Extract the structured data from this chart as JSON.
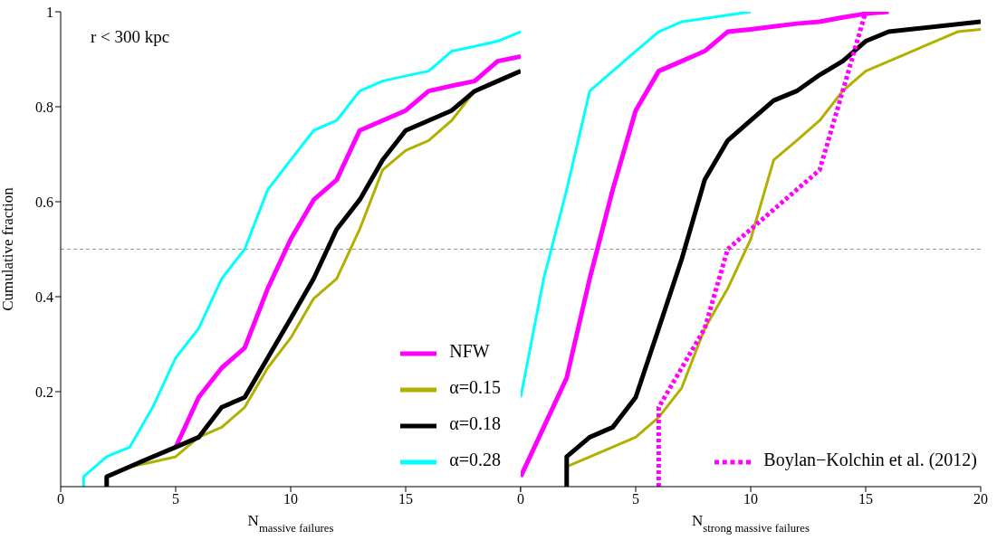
{
  "chart_data": [
    {
      "type": "line",
      "xlabel": "N$_{massive failures}$",
      "ylabel": "Cumulative fraction",
      "annotations": [
        "r < 300 kpc"
      ],
      "xlim": [
        0,
        20
      ],
      "xticks": [
        0,
        5,
        10,
        15,
        {
          "value": 20,
          "label": null
        }
      ],
      "ylim": [
        0,
        1
      ],
      "yticks": [
        0.2,
        0.4,
        0.6,
        0.8,
        1
      ],
      "legend": "bottom right",
      "marker": "none",
      "ref_lines": [
        {
          "axis": "y",
          "value": 0.5,
          "color": "#999999",
          "line_style": "dotted"
        }
      ],
      "series": [
        {
          "name": "NFW",
          "color": "#ff00ff",
          "x": [
            5,
            6,
            7,
            8,
            9,
            10,
            11,
            12,
            13,
            14,
            15,
            16,
            17,
            18,
            19,
            20
          ],
          "values": [
            0.083,
            0.188,
            0.25,
            0.292,
            0.417,
            0.521,
            0.604,
            0.646,
            0.75,
            0.771,
            0.792,
            0.833,
            0.844,
            0.854,
            0.896,
            0.906
          ]
        },
        {
          "name": "α=0.15",
          "color": "#b0b000",
          "x": [
            2,
            3,
            4,
            5,
            6,
            7,
            8,
            9,
            10,
            11,
            12,
            13,
            14,
            15,
            16,
            17,
            18,
            19,
            20
          ],
          "values": [
            0.021,
            0.042,
            0.052,
            0.063,
            0.104,
            0.125,
            0.167,
            0.25,
            0.313,
            0.396,
            0.438,
            0.542,
            0.667,
            0.708,
            0.729,
            0.771,
            0.833,
            0.854,
            0.875
          ]
        },
        {
          "name": "α=0.18",
          "color": "#000000",
          "x": [
            2,
            2,
            3,
            4,
            5,
            6,
            7,
            8,
            9,
            10,
            11,
            12,
            13,
            14,
            15,
            16,
            17,
            18,
            19,
            20
          ],
          "values": [
            0,
            0.021,
            0.042,
            0.063,
            0.083,
            0.104,
            0.167,
            0.188,
            0.271,
            0.354,
            0.438,
            0.542,
            0.604,
            0.688,
            0.75,
            0.771,
            0.792,
            0.833,
            0.854,
            0.875
          ]
        },
        {
          "name": "α=0.28",
          "color": "#00ffff",
          "x": [
            1,
            1,
            2,
            3,
            4,
            5,
            6,
            7,
            8,
            9,
            10,
            11,
            12,
            13,
            14,
            15,
            16,
            17,
            18,
            19,
            20
          ],
          "values": [
            0,
            0.021,
            0.063,
            0.083,
            0.167,
            0.271,
            0.333,
            0.438,
            0.5,
            0.625,
            0.688,
            0.75,
            0.771,
            0.833,
            0.854,
            0.865,
            0.875,
            0.917,
            0.927,
            0.938,
            0.958
          ]
        }
      ]
    },
    {
      "type": "line",
      "xlabel": "N$_{strong massive failures}$",
      "xlim": [
        0,
        20
      ],
      "xticks": [
        0,
        5,
        10,
        15,
        20
      ],
      "ylim": [
        0,
        1
      ],
      "yticks": [
        0.2,
        0.4,
        0.6,
        0.8,
        1
      ],
      "tick_labels": "x",
      "legend": "bottom right",
      "marker": "none",
      "ref_lines": [
        {
          "axis": "y",
          "value": 0.5,
          "color": "#999999",
          "line_style": "dotted"
        }
      ],
      "series": [
        {
          "color": "#ff00ff",
          "x": [
            0,
            1,
            2,
            3,
            4,
            5,
            6,
            7,
            8,
            9,
            10,
            11,
            12,
            13,
            14,
            15,
            16
          ],
          "values": [
            0.021,
            0.125,
            0.229,
            0.438,
            0.625,
            0.792,
            0.875,
            0.896,
            0.917,
            0.958,
            0.963,
            0.969,
            0.975,
            0.979,
            0.988,
            0.996,
            1
          ]
        },
        {
          "color": "#b0b000",
          "x": [
            2,
            5,
            6,
            7,
            8,
            9,
            10,
            11,
            12,
            13,
            14,
            15,
            19,
            20
          ],
          "values": [
            0.042,
            0.104,
            0.146,
            0.208,
            0.333,
            0.417,
            0.521,
            0.688,
            0.729,
            0.771,
            0.833,
            0.875,
            0.958,
            0.963
          ]
        },
        {
          "color": "#000000",
          "x": [
            2,
            2,
            3,
            4,
            5,
            6,
            7,
            8,
            9,
            10,
            11,
            12,
            13,
            14,
            15,
            16,
            20
          ],
          "values": [
            0,
            0.063,
            0.104,
            0.125,
            0.188,
            0.333,
            0.479,
            0.646,
            0.729,
            0.771,
            0.813,
            0.833,
            0.867,
            0.896,
            0.938,
            0.958,
            0.979
          ]
        },
        {
          "color": "#00ffff",
          "x": [
            0,
            1,
            2,
            3,
            4,
            5,
            6,
            7,
            10
          ],
          "values": [
            0.188,
            0.438,
            0.625,
            0.833,
            0.875,
            0.917,
            0.958,
            0.979,
            1
          ]
        },
        {
          "name": "Boylan−Kolchin et al. (2012)",
          "color": "#ff00ff",
          "line_style": "dotted",
          "x": [
            6,
            6,
            7,
            8,
            9,
            13,
            14,
            15
          ],
          "values": [
            0,
            0.167,
            0.25,
            0.333,
            0.5,
            0.667,
            0.833,
            1
          ]
        }
      ]
    }
  ]
}
